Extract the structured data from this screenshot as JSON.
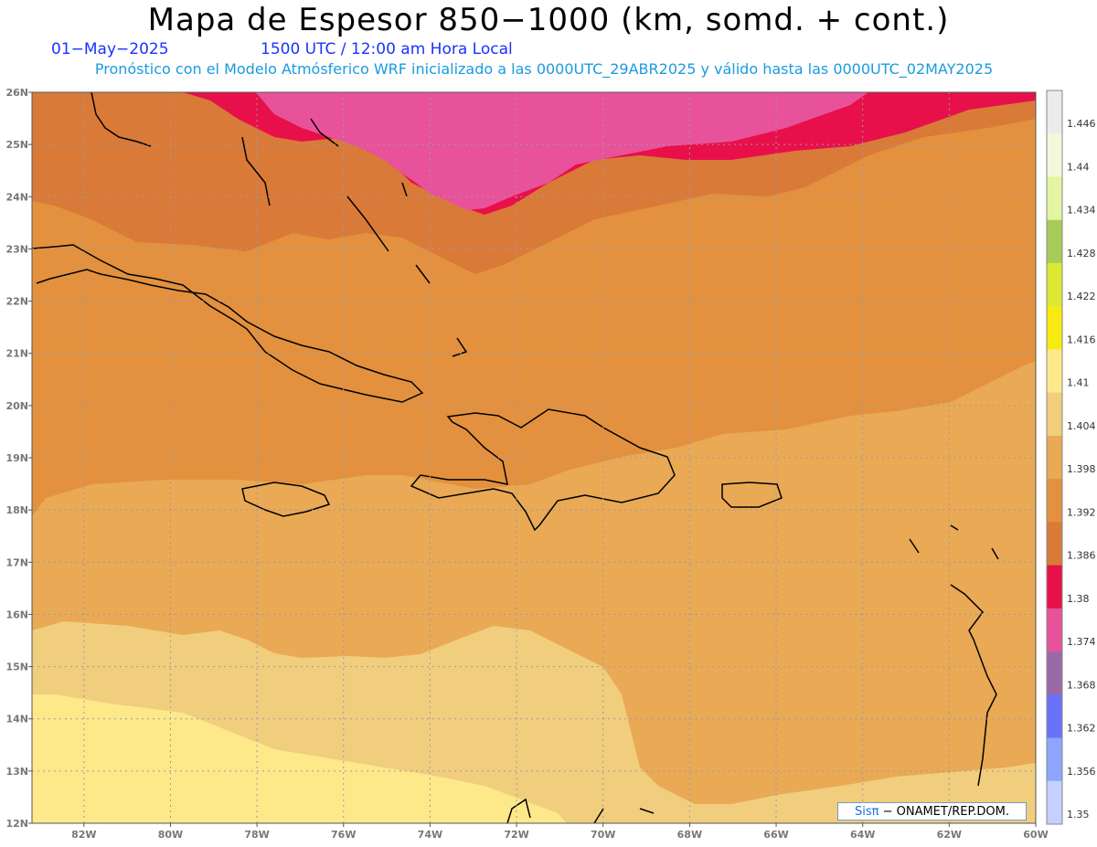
{
  "header": {
    "title": "Mapa de Espesor 850−1000 (km, somd. + cont.)",
    "date": "01−May−2025",
    "time": "1500 UTC / 12:00 am Hora Local",
    "subtitle": "Pronóstico con el Modelo Atmósferico WRF inicializado a las 0000UTC_29ABR2025 y válido hasta las  0000UTC_02MAY2025"
  },
  "map": {
    "lat_labels": [
      "26N",
      "25N",
      "24N",
      "23N",
      "22N",
      "21N",
      "20N",
      "19N",
      "18N",
      "17N",
      "16N",
      "15N",
      "14N",
      "13N",
      "12N"
    ],
    "lon_labels": [
      "82W",
      "80W",
      "78W",
      "76W",
      "74W",
      "72W",
      "70W",
      "68W",
      "66W",
      "64W",
      "62W",
      "60W"
    ],
    "lat_range": [
      12,
      26
    ],
    "lon_range": [
      -83.2,
      -60
    ],
    "zones": [
      {
        "name": "1.374-1.380",
        "color": "#e8529a"
      },
      {
        "name": "1.380-1.386",
        "color": "#e8104a"
      },
      {
        "name": "1.386-1.392",
        "color": "#d97a38"
      },
      {
        "name": "1.392-1.398",
        "color": "#e3913e"
      },
      {
        "name": "1.398-1.404",
        "color": "#e9a955"
      },
      {
        "name": "1.404-1.410",
        "color": "#f0ce7e"
      },
      {
        "name": "1.410-1.416",
        "color": "#fde98a"
      }
    ]
  },
  "colorbar": {
    "labels": [
      "1.446",
      "1.44",
      "1.434",
      "1.428",
      "1.422",
      "1.416",
      "1.41",
      "1.404",
      "1.398",
      "1.392",
      "1.386",
      "1.38",
      "1.374",
      "1.368",
      "1.362",
      "1.356",
      "1.35"
    ],
    "colors": [
      "#ebebeb",
      "#f3f8dc",
      "#e3f5a0",
      "#a8cc5a",
      "#dce833",
      "#f7ea10",
      "#fde98a",
      "#f0ce7e",
      "#e9a955",
      "#e3913e",
      "#d97a38",
      "#e8104a",
      "#e8529a",
      "#9a6aa8",
      "#6a72fa",
      "#8ea6ff",
      "#c4d0ff"
    ]
  },
  "credit": {
    "brand": "Sisπ",
    "text": "−  ONAMET/REP.DOM."
  }
}
